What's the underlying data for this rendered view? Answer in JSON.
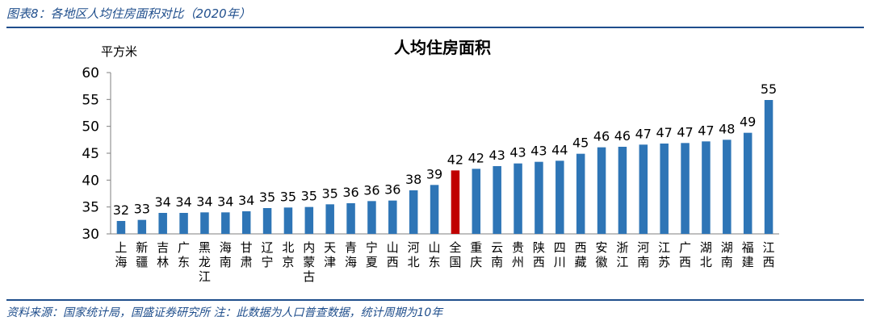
{
  "figure_title": "图表8：各地区人均住房面积对比（2020年）",
  "source_note": "资料来源：国家统计局，国盛证券研究所 注：此数据为人口普查数据，统计周期为10年",
  "chart_data": {
    "type": "bar",
    "title": "人均住房面积",
    "ylabel": "平方米",
    "ylim": [
      30,
      60
    ],
    "yticks": [
      30,
      35,
      40,
      45,
      50,
      55,
      60
    ],
    "grid": false,
    "legend": "none",
    "colors": {
      "bar": "#2e75b6",
      "highlight": "#c00000"
    },
    "highlight_category": "全国",
    "categories": [
      "上海",
      "新疆",
      "吉林",
      "广东",
      "黑龙江",
      "海南",
      "甘肃",
      "辽宁",
      "北京",
      "内蒙古",
      "天津",
      "青海",
      "宁夏",
      "山西",
      "河北",
      "山东",
      "全国",
      "重庆",
      "云南",
      "贵州",
      "陕西",
      "四川",
      "西藏",
      "安徽",
      "浙江",
      "河南",
      "江苏",
      "广西",
      "湖北",
      "湖南",
      "福建",
      "江西"
    ],
    "values": [
      32.4,
      32.6,
      33.9,
      33.9,
      34.0,
      34.0,
      34.2,
      34.8,
      34.9,
      35.0,
      35.5,
      35.7,
      36.1,
      36.2,
      38.1,
      39.1,
      41.8,
      42.1,
      42.6,
      43.1,
      43.4,
      43.6,
      44.9,
      46.1,
      46.2,
      46.6,
      46.8,
      46.9,
      47.2,
      47.5,
      48.8,
      54.9
    ],
    "data_labels": [
      "32",
      "33",
      "34",
      "34",
      "34",
      "34",
      "34",
      "35",
      "35",
      "35",
      "35",
      "36",
      "36",
      "36",
      "38",
      "39",
      "42",
      "42",
      "43",
      "43",
      "43",
      "44",
      "45",
      "46",
      "46",
      "47",
      "47",
      "47",
      "47",
      "48",
      "49",
      "55"
    ]
  }
}
